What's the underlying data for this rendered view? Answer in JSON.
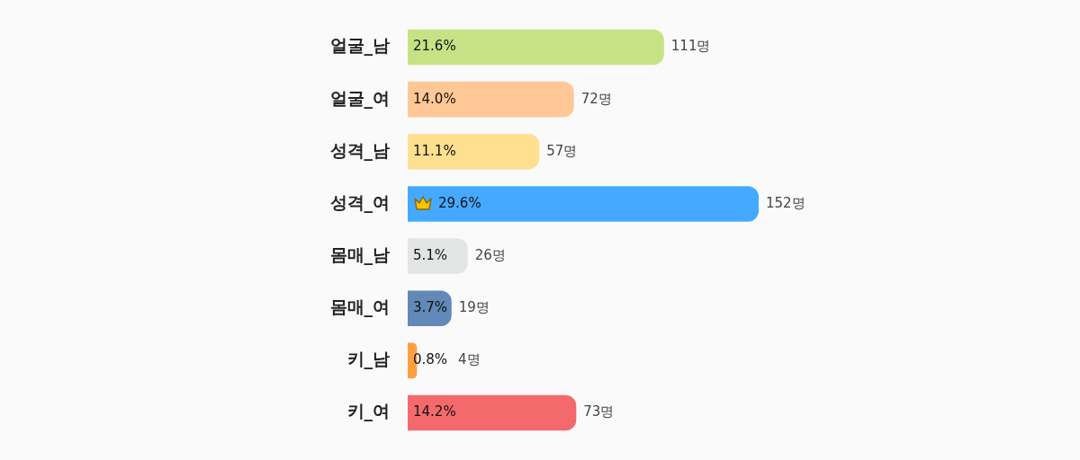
{
  "chart_data": {
    "type": "bar",
    "orientation": "horizontal",
    "categories": [
      "얼굴_남",
      "얼굴_여",
      "성격_남",
      "성격_여",
      "몸매_남",
      "몸매_여",
      "키_남",
      "키_여"
    ],
    "values": [
      111,
      72,
      57,
      152,
      26,
      19,
      4,
      73
    ],
    "colors": [
      "#c5e384",
      "#ffc896",
      "#ffe090",
      "#45aaff",
      "#e3e4e4",
      "#6289b8",
      "#ffa040",
      "#f46a6c"
    ],
    "value_labels": [
      "111명",
      "72명",
      "57명",
      "152명",
      "26명",
      "19명",
      "4명",
      "73명"
    ],
    "annotations": [
      "21.6%",
      "14.0%",
      "11.1%",
      "29.6%",
      "5.1%",
      "3.7%",
      "0.8%",
      "14.2%"
    ],
    "grid": false,
    "legend": false
  }
}
